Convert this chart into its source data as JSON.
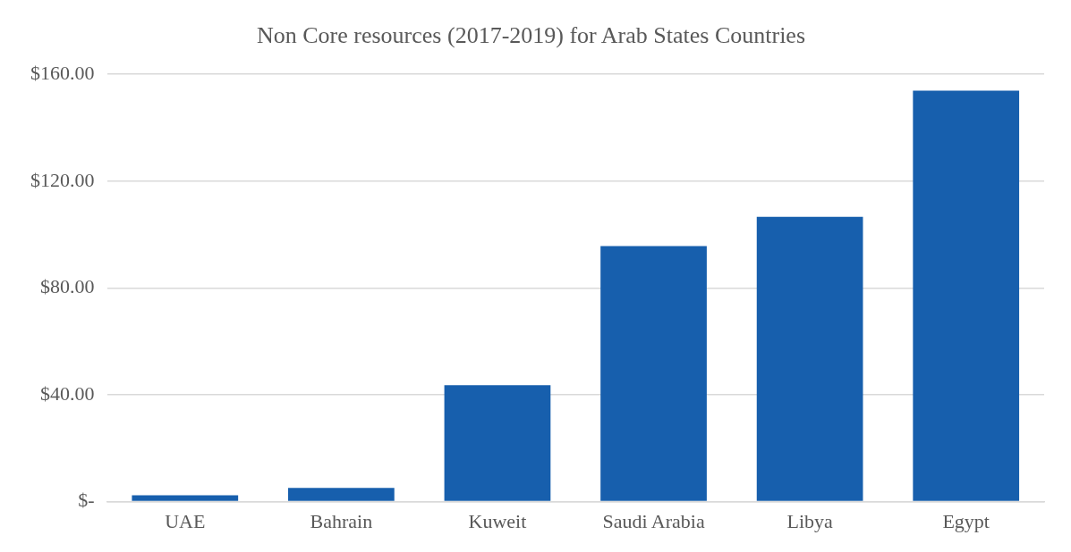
{
  "chart_data": {
    "type": "bar",
    "title": "Non Core resources (2017-2019) for Arab States Countries",
    "categories": [
      "UAE",
      "Bahrain",
      "Kuweit",
      "Saudi Arabia",
      "Libya",
      "Egypt"
    ],
    "values": [
      2.4,
      5.1,
      43.6,
      95.7,
      106.6,
      153.9
    ],
    "color": "#175fad",
    "ylim": [
      0,
      160
    ],
    "yticks": [
      {
        "value": 0,
        "label": "$-"
      },
      {
        "value": 40,
        "label": "$40.00"
      },
      {
        "value": 80,
        "label": "$80.00"
      },
      {
        "value": 120,
        "label": "$120.00"
      },
      {
        "value": 160,
        "label": "$160.00"
      }
    ],
    "grid": "y"
  }
}
